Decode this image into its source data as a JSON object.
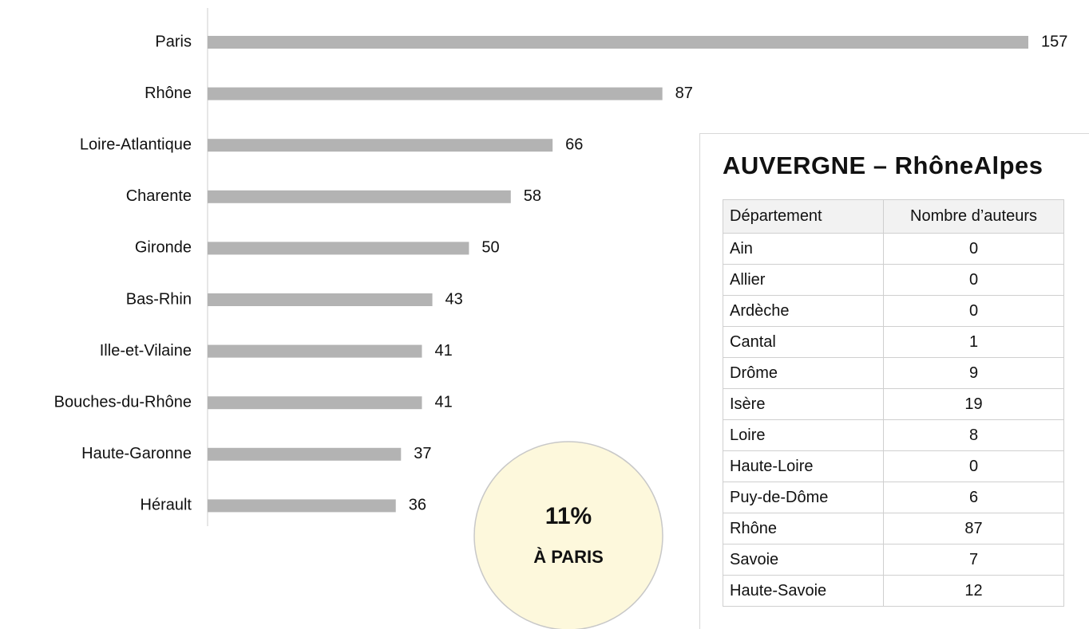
{
  "chart_data": {
    "type": "bar",
    "orientation": "horizontal",
    "categories": [
      "Paris",
      "Rhône",
      "Loire-Atlantique",
      "Charente",
      "Gironde",
      "Bas-Rhin",
      "Ille-et-Vilaine",
      "Bouches-du-Rhône",
      "Haute-Garonne",
      "Hérault"
    ],
    "values": [
      157,
      87,
      66,
      58,
      50,
      43,
      41,
      41,
      37,
      36
    ],
    "color": "#b3b3b3"
  },
  "callout": {
    "value": "11%",
    "label": "À PARIS"
  },
  "table": {
    "title": "AUVERGNE – RhôneAlpes",
    "header": [
      "Département",
      "Nombre d’auteurs"
    ],
    "rows": [
      [
        "Ain",
        0
      ],
      [
        "Allier",
        0
      ],
      [
        "Ardèche",
        0
      ],
      [
        "Cantal",
        1
      ],
      [
        "Drôme",
        9
      ],
      [
        "Isère",
        19
      ],
      [
        "Loire",
        8
      ],
      [
        "Haute-Loire",
        0
      ],
      [
        "Puy-de-Dôme",
        6
      ],
      [
        "Rhône",
        87
      ],
      [
        "Savoie",
        7
      ],
      [
        "Haute-Savoie",
        12
      ]
    ]
  }
}
